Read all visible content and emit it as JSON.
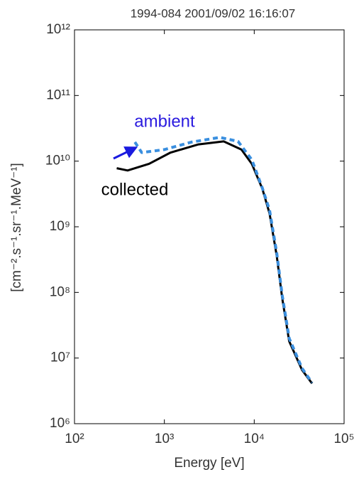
{
  "chart_data": {
    "type": "line",
    "title": "1994-084 2001/09/02 16:16:07",
    "xlabel": "Energy [eV]",
    "ylabel": "[cm⁻².s⁻¹.sr⁻¹.MeV⁻¹]",
    "xscale": "log",
    "yscale": "log",
    "xlim": [
      100,
      100000
    ],
    "ylim": [
      1000000,
      1000000000000
    ],
    "xticks": [
      {
        "value": 100,
        "label": "10²"
      },
      {
        "value": 1000,
        "label": "10³"
      },
      {
        "value": 10000,
        "label": "10⁴"
      },
      {
        "value": 100000,
        "label": "10⁵"
      }
    ],
    "yticks": [
      {
        "value": 1000000,
        "label": "10⁶"
      },
      {
        "value": 10000000,
        "label": "10⁷"
      },
      {
        "value": 100000000,
        "label": "10⁸"
      },
      {
        "value": 1000000000,
        "label": "10⁹"
      },
      {
        "value": 10000000000,
        "label": "10¹⁰"
      },
      {
        "value": 100000000000,
        "label": "10¹¹"
      },
      {
        "value": 1000000000000,
        "label": "10¹²"
      }
    ],
    "series": [
      {
        "name": "collected",
        "color": "#000000",
        "dashed": false,
        "x": [
          295,
          390,
          676,
          1170,
          2400,
          4570,
          7200,
          9400,
          12300,
          14800,
          17800,
          20500,
          24500,
          34000,
          44000
        ],
        "values": [
          7800000000,
          7200000000,
          9100000000,
          13500000000,
          18000000000,
          20000000000,
          15000000000,
          9100000000,
          3800000000,
          1600000000,
          360000000,
          81000000,
          18000000,
          6600000,
          4100000
        ]
      },
      {
        "name": "ambient",
        "color": "#3a8fdf",
        "dashed": true,
        "x": [
          470,
          560,
          1000,
          2000,
          4150,
          6600,
          9400,
          12300,
          14800,
          17800,
          20500,
          24500,
          34000,
          44000
        ],
        "values": [
          19500000000,
          13500000000,
          15000000000,
          19500000000,
          23000000000,
          20000000000,
          10500000000,
          3900000000,
          1800000000,
          400000000,
          90000000,
          20000000,
          7000000,
          4200000
        ]
      }
    ]
  }
}
